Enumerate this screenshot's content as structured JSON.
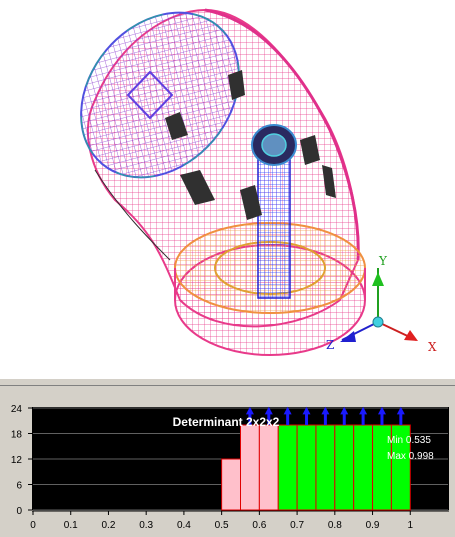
{
  "viewport": {
    "axes": {
      "x_label": "X",
      "y_label": "Y",
      "z_label": "Z"
    },
    "colors": {
      "mesh_pink": "#e83a8a",
      "mesh_purple": "#9a4fd8",
      "mesh_blue": "#3a3ae8",
      "mesh_orange": "#f0a050",
      "axis_x": "#cc2020",
      "axis_y": "#20a020",
      "axis_z": "#2020cc"
    }
  },
  "histogram": {
    "title": "Determinant 2x2x2",
    "min_text": "Min 0.535",
    "max_text": "Max 0.998",
    "colors": {
      "bad": "#ffc0cb",
      "good": "#00ff00",
      "marker": "#1a1aff",
      "background": "#000000"
    }
  },
  "chart_data": {
    "type": "bar",
    "title": "Determinant 2x2x2",
    "x_ticks": [
      "0",
      "0.1",
      "0.2",
      "0.3",
      "0.4",
      "0.5",
      "0.6",
      "0.7",
      "0.8",
      "0.9",
      "1"
    ],
    "y_ticks": [
      "0",
      "6",
      "12",
      "18",
      "24"
    ],
    "xlim": [
      0,
      1.1
    ],
    "ylim": [
      0,
      24
    ],
    "bins": [
      {
        "x0": 0.5,
        "x1": 0.55,
        "value": 12,
        "class": "bad"
      },
      {
        "x0": 0.55,
        "x1": 0.6,
        "value": 20,
        "class": "bad"
      },
      {
        "x0": 0.6,
        "x1": 0.65,
        "value": 20,
        "class": "bad"
      },
      {
        "x0": 0.65,
        "x1": 0.7,
        "value": 20,
        "class": "good"
      },
      {
        "x0": 0.7,
        "x1": 0.75,
        "value": 20,
        "class": "good"
      },
      {
        "x0": 0.75,
        "x1": 0.8,
        "value": 20,
        "class": "good"
      },
      {
        "x0": 0.8,
        "x1": 0.85,
        "value": 20,
        "class": "good"
      },
      {
        "x0": 0.85,
        "x1": 0.9,
        "value": 20,
        "class": "good"
      },
      {
        "x0": 0.9,
        "x1": 0.95,
        "value": 20,
        "class": "good"
      },
      {
        "x0": 0.95,
        "x1": 1.0,
        "value": 20,
        "class": "good"
      }
    ],
    "overflow_markers": [
      0.575,
      0.625,
      0.675,
      0.725,
      0.775,
      0.825,
      0.875,
      0.925,
      0.975
    ],
    "grid": true
  }
}
